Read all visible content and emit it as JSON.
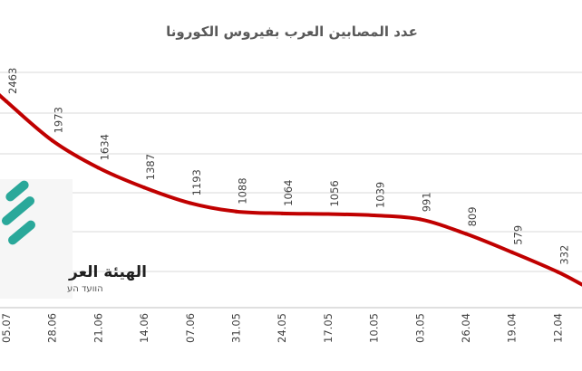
{
  "chart_data": {
    "type": "line",
    "title": "عدد المصابين العرب بفيروس الكورونا",
    "xlabel": "",
    "ylabel": "",
    "categories": [
      "05.07",
      "28.06",
      "21.06",
      "14.06",
      "07.06",
      "31.05",
      "24.05",
      "17.05",
      "10.05",
      "03.05",
      "26.04",
      "19.04",
      "12.04"
    ],
    "series": [
      {
        "color": "#c00000",
        "values": [
          2463,
          1973,
          1634,
          1387,
          1193,
          1088,
          1064,
          1056,
          1039,
          991,
          809,
          579,
          332
        ]
      }
    ],
    "data_labels": [
      "2463",
      "1973",
      "1634",
      "1387",
      "1193",
      "1088",
      "1064",
      "1056",
      "1039",
      "991",
      "809",
      "579",
      "332"
    ],
    "grid": true,
    "legend": "none"
  },
  "logo": {
    "main_text": "الهيئة العر",
    "sub_text": "הוועד הע",
    "color": "#2aa89a"
  }
}
